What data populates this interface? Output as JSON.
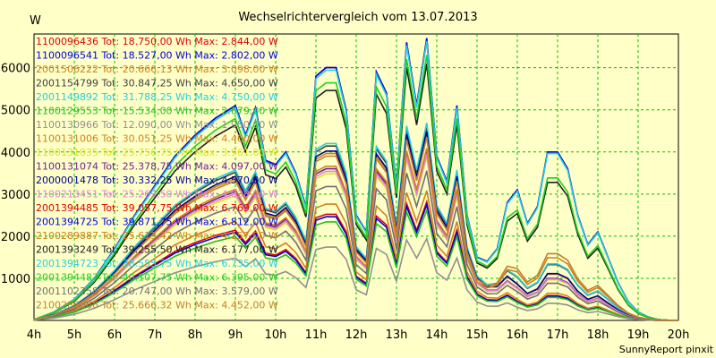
{
  "chart_data": {
    "type": "line",
    "title": "Wechselrichtervergleich vom 13.07.2013",
    "ylabel": "W",
    "footer": "SunnyReport pinxit",
    "ylim": [
      0,
      6800
    ],
    "yticks": [
      1000,
      2000,
      3000,
      4000,
      5000,
      6000
    ],
    "xticks": [
      "4h",
      "5h",
      "6h",
      "7h",
      "8h",
      "9h",
      "10h",
      "11h",
      "12h",
      "13h",
      "14h",
      "15h",
      "16h",
      "17h",
      "18h",
      "19h",
      "20h"
    ],
    "xlim": [
      4,
      20
    ],
    "grid": true,
    "legend_position": "top-left",
    "series": [
      {
        "name": "1100096436 Tot: 18.750,00 Wh Max: 2.844,00 W",
        "color": "#e00000",
        "scale": 0.42,
        "tail": 0
      },
      {
        "name": "1100096541 Tot: 18.527,00 Wh Max: 2.802,00 W",
        "color": "#0000e0",
        "scale": 0.41,
        "tail": 0
      },
      {
        "name": "2001506222 Tot: 20.666,13 Wh Max: 3.098,00 W",
        "color": "#d08020",
        "scale": 0.46,
        "tail": 0
      },
      {
        "name": "2001154799 Tot: 30.847,25 Wh Max: 4.650,00 W",
        "color": "#404040",
        "scale": 0.69,
        "tail": 0.2
      },
      {
        "name": "2001149892 Tot: 31.788,25 Wh Max: 4.750,00 W",
        "color": "#20d0e0",
        "scale": 0.7,
        "tail": 0.2
      },
      {
        "name": "1100129553 Tot: 15.534,00 Wh Max: 2.679,00 W",
        "color": "#20c020",
        "scale": 0.39,
        "tail": 0
      },
      {
        "name": "1100130966 Tot: 12.090,00 Wh Max: 1.950,00 W",
        "color": "#909090",
        "scale": 0.29,
        "tail": 0
      },
      {
        "name": "1100131006 Tot: 30.051,25 Wh Max: 4.460,00 W",
        "color": "#d08020",
        "scale": 0.66,
        "tail": 0.1
      },
      {
        "name": "1100131035 Tot: 25.756,75 Wh Max: 3.961,00 W",
        "color": "#e0e020",
        "scale": 0.58,
        "tail": 0.1
      },
      {
        "name": "1100131074 Tot: 25.378,75 Wh Max: 4.097,00 W",
        "color": "#702090",
        "scale": 0.6,
        "tail": 0.1
      },
      {
        "name": "2000001478 Tot: 30.332,25 Wh Max: 4.570,00 W",
        "color": "#000090",
        "scale": 0.67,
        "tail": 0.1
      },
      {
        "name": "1100213451 Tot: 25.269,50 Wh Max: 4.038,00 W",
        "color": "#e080e0",
        "scale": 0.59,
        "tail": 0.1
      },
      {
        "name": "2001394485 Tot: 39.057,75 Wh Max: 6.769,00 W",
        "color": "#e00000",
        "scale": 1.0,
        "tail": 1
      },
      {
        "name": "2001394725 Tot: 39.871,75 Wh Max: 6.812,00 W",
        "color": "#0000e0",
        "scale": 1.0,
        "tail": 1
      },
      {
        "name": "2100289887 Tot: 25.613,42 Wh Max: 4.157,00 W",
        "color": "#d08020",
        "scale": 0.61,
        "tail": 0.4
      },
      {
        "name": "2001393249 Tot: 39.255,50 Wh Max: 6.177,00 W",
        "color": "#202020",
        "scale": 0.91,
        "tail": 0.9
      },
      {
        "name": "2001394723 Tot: 38.555,75 Wh Max: 6.735,00 W",
        "color": "#20d0e0",
        "scale": 0.99,
        "tail": 1
      },
      {
        "name": "2001394487 Tot: 40.107,75 Wh Max: 6.395,00 W",
        "color": "#20d020",
        "scale": 0.94,
        "tail": 0.9
      },
      {
        "name": "2001102358 Tot: 20.747,00 Wh Max: 3.579,00 W",
        "color": "#707070",
        "scale": 0.53,
        "tail": 0.1
      },
      {
        "name": "2100285666 Tot: 25.666,32 Wh Max: 4.452,00 W",
        "color": "#c08030",
        "scale": 0.65,
        "tail": 0.4
      }
    ],
    "profile_x": [
      4.0,
      4.5,
      5.0,
      5.5,
      6.0,
      6.5,
      7.0,
      7.5,
      8.0,
      8.5,
      9.0,
      9.25,
      9.5,
      9.75,
      10.0,
      10.25,
      10.5,
      10.75,
      11.0,
      11.25,
      11.5,
      11.75,
      12.0,
      12.25,
      12.5,
      12.75,
      13.0,
      13.25,
      13.5,
      13.75,
      14.0,
      14.25,
      14.5,
      14.75,
      15.0,
      15.25,
      15.5,
      15.75,
      16.0,
      16.25,
      16.5,
      16.75,
      17.0,
      17.25,
      17.5,
      17.75,
      18.0,
      18.25,
      18.5,
      18.75,
      19.0,
      19.25,
      19.5,
      19.75,
      20.0
    ],
    "profile_y": [
      20,
      200,
      500,
      1000,
      1700,
      2500,
      3200,
      3900,
      4400,
      4800,
      5100,
      4400,
      5050,
      3800,
      3700,
      4000,
      3500,
      2700,
      5800,
      6000,
      6000,
      5000,
      2500,
      2100,
      5900,
      5400,
      3200,
      6600,
      5100,
      6700,
      3900,
      3300,
      5100,
      2500,
      1500,
      1400,
      1700,
      2800,
      3100,
      2300,
      2700,
      4000,
      4000,
      3600,
      2500,
      1800,
      2100,
      1500,
      900,
      450,
      200,
      80,
      20,
      5,
      0
    ]
  }
}
